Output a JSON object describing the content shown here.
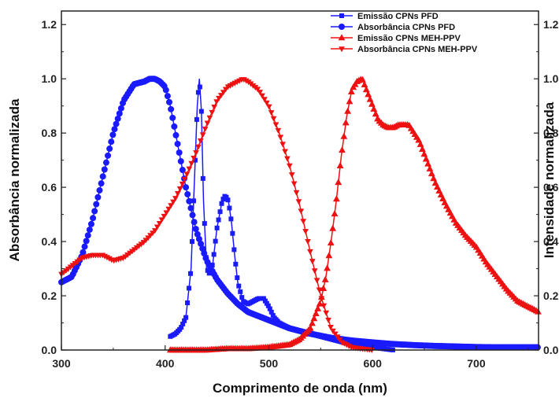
{
  "chart_data": {
    "type": "line",
    "xlabel": "Comprimento de onda (nm)",
    "ylabel": "Absorbância normalizada",
    "y2label": "Intensidade normalizada",
    "xlim": [
      300,
      760
    ],
    "ylim": [
      0,
      1.25
    ],
    "y2lim": [
      0,
      1.25
    ],
    "xticks": [
      300,
      400,
      500,
      600,
      700
    ],
    "yticks": [
      0.0,
      0.2,
      0.4,
      0.6,
      0.8,
      1.0,
      1.2
    ],
    "ytick_labels": [
      "0.0",
      "0.2",
      "0.4",
      "0.6",
      "0.8",
      "1.0",
      "1.2"
    ],
    "legend_position": "top-right",
    "series": [
      {
        "name": "Emissão CPNs PFD",
        "color": "#1a1aff",
        "marker": "square",
        "x": [
          405,
          410,
          415,
          420,
          425,
          428,
          431,
          433,
          435,
          437,
          440,
          443,
          446,
          450,
          455,
          458,
          461,
          464,
          467,
          470,
          475,
          480,
          485,
          490,
          495,
          500,
          505,
          510,
          520,
          530,
          540,
          550,
          560,
          570,
          580,
          590,
          600,
          610,
          620
        ],
        "y": [
          0.05,
          0.06,
          0.08,
          0.12,
          0.3,
          0.6,
          0.9,
          1.0,
          0.88,
          0.55,
          0.3,
          0.28,
          0.32,
          0.45,
          0.55,
          0.57,
          0.55,
          0.47,
          0.35,
          0.25,
          0.18,
          0.17,
          0.18,
          0.19,
          0.19,
          0.16,
          0.12,
          0.1,
          0.08,
          0.07,
          0.06,
          0.05,
          0.04,
          0.03,
          0.02,
          0.015,
          0.01,
          0.005,
          0.0
        ]
      },
      {
        "name": "Absorbância CPNs PFD",
        "color": "#1a1aff",
        "marker": "circle",
        "x": [
          300,
          310,
          320,
          330,
          340,
          350,
          360,
          370,
          380,
          385,
          390,
          395,
          400,
          405,
          410,
          415,
          420,
          425,
          430,
          440,
          450,
          460,
          470,
          480,
          500,
          520,
          540,
          560,
          580,
          600,
          620,
          640,
          660,
          680,
          700,
          720,
          740,
          760
        ],
        "y": [
          0.25,
          0.27,
          0.35,
          0.48,
          0.64,
          0.8,
          0.92,
          0.98,
          0.99,
          1.0,
          1.0,
          0.99,
          0.97,
          0.9,
          0.8,
          0.7,
          0.6,
          0.52,
          0.44,
          0.33,
          0.26,
          0.21,
          0.17,
          0.14,
          0.11,
          0.08,
          0.06,
          0.045,
          0.035,
          0.028,
          0.022,
          0.018,
          0.015,
          0.013,
          0.011,
          0.01,
          0.01,
          0.01
        ]
      },
      {
        "name": "Emissão CPNs MEH-PPV",
        "color": "#ee1111",
        "marker": "triangle-up",
        "x": [
          405,
          420,
          440,
          460,
          480,
          500,
          520,
          530,
          540,
          550,
          555,
          560,
          565,
          570,
          575,
          580,
          585,
          590,
          595,
          600,
          605,
          610,
          615,
          620,
          625,
          630,
          635,
          640,
          645,
          650,
          660,
          670,
          680,
          690,
          700,
          710,
          720,
          730,
          740,
          750,
          760
        ],
        "y": [
          0.0,
          0.0,
          0.0,
          0.005,
          0.005,
          0.01,
          0.02,
          0.04,
          0.08,
          0.18,
          0.27,
          0.4,
          0.55,
          0.72,
          0.86,
          0.96,
          0.99,
          1.0,
          0.95,
          0.9,
          0.85,
          0.83,
          0.82,
          0.82,
          0.83,
          0.83,
          0.83,
          0.8,
          0.77,
          0.72,
          0.62,
          0.54,
          0.47,
          0.42,
          0.38,
          0.32,
          0.27,
          0.22,
          0.18,
          0.16,
          0.14
        ]
      },
      {
        "name": "Absorbância CPNs MEH-PPV",
        "color": "#ee1111",
        "marker": "triangle-down",
        "x": [
          300,
          310,
          320,
          330,
          340,
          350,
          360,
          370,
          380,
          390,
          400,
          410,
          420,
          430,
          440,
          450,
          460,
          470,
          475,
          480,
          490,
          500,
          510,
          520,
          530,
          540,
          550,
          560,
          570,
          580,
          590,
          600
        ],
        "y": [
          0.28,
          0.31,
          0.34,
          0.35,
          0.35,
          0.33,
          0.34,
          0.37,
          0.4,
          0.44,
          0.5,
          0.56,
          0.64,
          0.73,
          0.83,
          0.92,
          0.97,
          0.99,
          1.0,
          0.99,
          0.96,
          0.9,
          0.8,
          0.68,
          0.53,
          0.36,
          0.2,
          0.08,
          0.03,
          0.01,
          0.005,
          0.0
        ]
      }
    ]
  }
}
